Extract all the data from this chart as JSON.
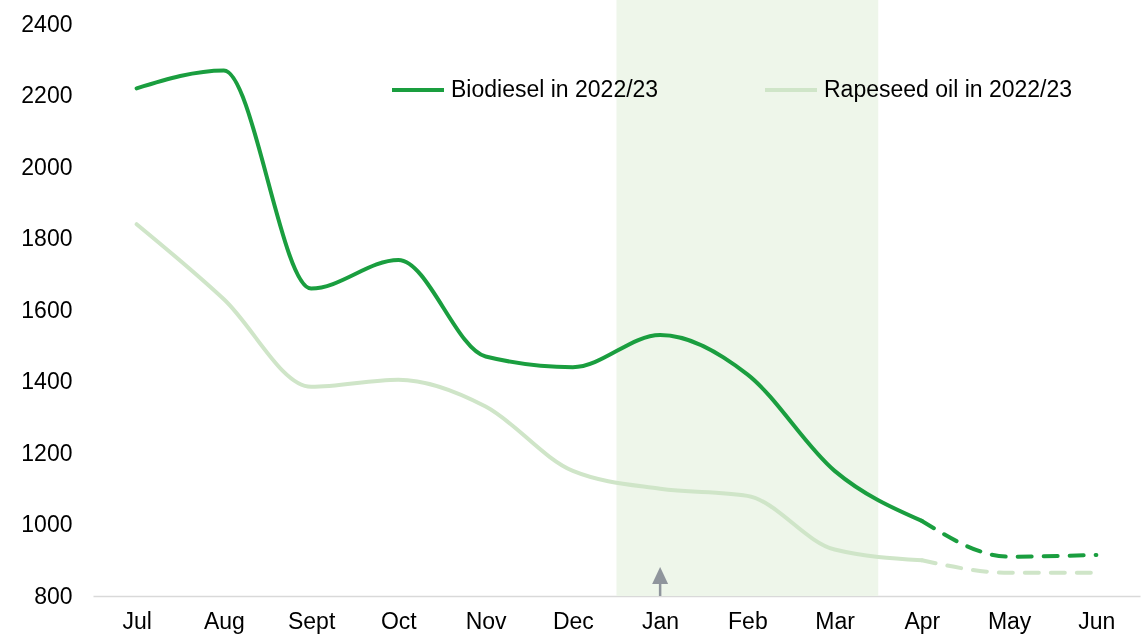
{
  "chart_data": {
    "type": "line",
    "categories": [
      "Jul",
      "Aug",
      "Sept",
      "Oct",
      "Nov",
      "Dec",
      "Jan",
      "Feb",
      "Mar",
      "Apr",
      "May",
      "Jun"
    ],
    "series": [
      {
        "name": "Biodiesel in 2022/23",
        "color": "#1a9e3f",
        "line_style": "solid",
        "values": [
          2220,
          2270,
          1660,
          1740,
          1470,
          1440,
          1530,
          1420,
          1150,
          1010,
          null,
          null
        ]
      },
      {
        "color": "#1a9e3f",
        "line_style": "dashed",
        "values": [
          null,
          null,
          null,
          null,
          null,
          null,
          null,
          null,
          null,
          1010,
          910,
          915
        ]
      },
      {
        "name": "Rapeseed oil in 2022/23",
        "color": "#cfe5c8",
        "line_style": "solid",
        "values": [
          1840,
          1630,
          1385,
          1405,
          1330,
          1150,
          1100,
          1080,
          930,
          900,
          null,
          null
        ]
      },
      {
        "color": "#cfe5c8",
        "line_style": "dashed",
        "values": [
          null,
          null,
          null,
          null,
          null,
          null,
          null,
          null,
          null,
          900,
          865,
          865
        ]
      }
    ],
    "ylim": [
      800,
      2400
    ],
    "yticks": [
      800,
      1000,
      1200,
      1400,
      1600,
      1800,
      2000,
      2200,
      2400
    ],
    "legend": "top right",
    "bands": [
      {
        "axis": "x",
        "from": "Jan",
        "to": "Mar",
        "color": "#eef6ea"
      }
    ]
  }
}
